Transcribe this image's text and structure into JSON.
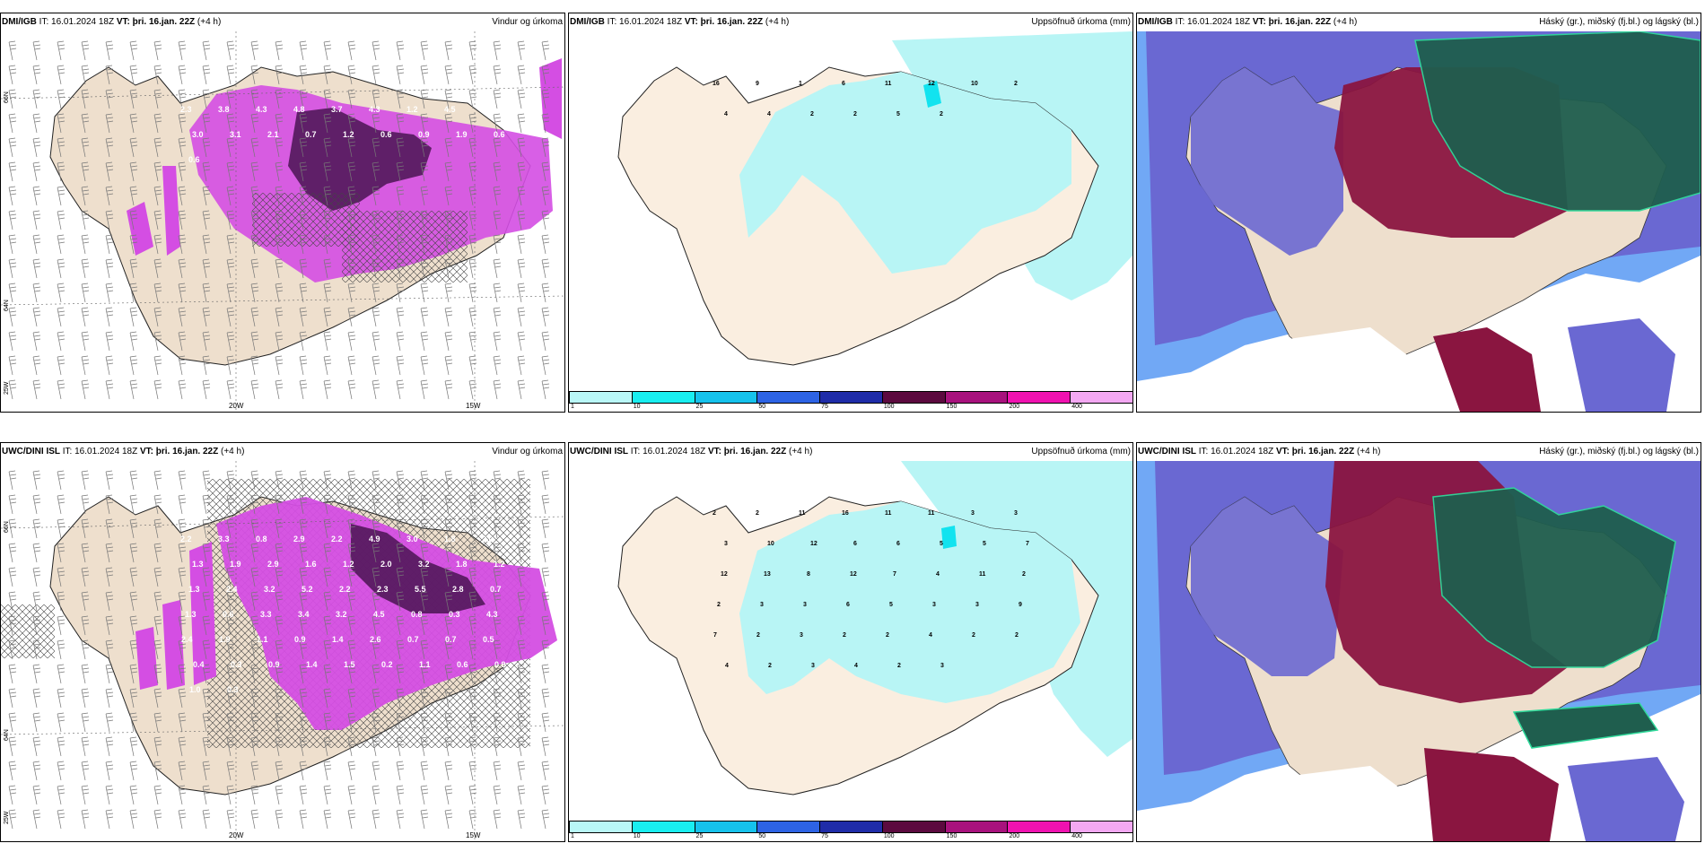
{
  "panels": [
    {
      "model": "DMI/IGB",
      "it_label": "IT:",
      "it": "16.01.2024 18Z",
      "vt_label": "VT:",
      "vt": "þri. 16.jan. 22Z",
      "lead": "(+4 h)",
      "title": "Vindur og úrkoma"
    },
    {
      "model": "DMI/IGB",
      "it_label": "IT:",
      "it": "16.01.2024 18Z",
      "vt_label": "VT:",
      "vt": "þri. 16.jan. 22Z",
      "lead": "(+4 h)",
      "title": "Uppsöfnuð úrkoma (mm)"
    },
    {
      "model": "DMI/IGB",
      "it_label": "IT:",
      "it": "16.01.2024 18Z",
      "vt_label": "VT:",
      "vt": "þri. 16.jan. 22Z",
      "lead": "(+4 h)",
      "title": "Háský (gr.), miðský (fj.bl.) og lágský (bl.)"
    },
    {
      "model": "UWC/DINI ISL",
      "it_label": "IT:",
      "it": "16.01.2024 18Z",
      "vt_label": "VT:",
      "vt": "þri. 16.jan. 22Z",
      "lead": "(+4 h)",
      "title": "Vindur og úrkoma"
    },
    {
      "model": "UWC/DINI ISL",
      "it_label": "IT:",
      "it": "16.01.2024 18Z",
      "vt_label": "VT:",
      "vt": "þri. 16.jan. 22Z",
      "lead": "(+4 h)",
      "title": "Uppsöfnuð úrkoma (mm)"
    },
    {
      "model": "UWC/DINI ISL",
      "it_label": "IT:",
      "it": "16.01.2024 18Z",
      "vt_label": "VT:",
      "vt": "þri. 16.jan. 22Z",
      "lead": "(+4 h)",
      "title": "Háský (gr.), miðský (fj.bl.) og lágský (bl.)"
    }
  ],
  "axes": {
    "lon_20": "20W",
    "lon_15": "15W",
    "lat_66": "66N",
    "lat_64": "64N",
    "lon_25": "25W"
  },
  "colorbar": {
    "ticks": [
      "1",
      "10",
      "25",
      "50",
      "75",
      "100",
      "150",
      "200",
      "400"
    ],
    "colors": [
      "#b9f7f7",
      "#19eef0",
      "#16c2ec",
      "#2d63e4",
      "#1f2ca8",
      "#5c0a3f",
      "#a8127d",
      "#f012b0",
      "#f3a8f2"
    ]
  },
  "colors": {
    "land": "#eedfcd",
    "precip_light": "#b8f5f5",
    "precip_mid": "#12e3ef",
    "wind_precip": "#d44ee3",
    "wind_precip_dark": "#4a1452",
    "cloud_high": "#8a1540",
    "cloud_mid": "#6a68d2",
    "cloud_low": "#1f5e4e",
    "cloud_light": "#71a8f5"
  },
  "precip_values": {
    "top_left": [
      "2.3",
      "3.8",
      "4.3",
      "4.8",
      "3.7",
      "4.3",
      "1.2",
      "4.5",
      "3.9",
      "3.0",
      "3.1",
      "2.1",
      "0.7",
      "1.2",
      "0.6",
      "0.9",
      "1.9",
      "0.6",
      "0.6"
    ],
    "top_mid": [
      "16",
      "9",
      "1",
      "6",
      "11",
      "12",
      "10",
      "2",
      "4",
      "4",
      "2",
      "2",
      "5",
      "2"
    ],
    "bottom_left": [
      "2.2",
      "3.3",
      "0.8",
      "2.9",
      "2.2",
      "4.9",
      "3.0",
      "1.8",
      "2.0",
      "1.3",
      "1.9",
      "2.9",
      "1.6",
      "1.2",
      "2.0",
      "3.2",
      "1.8",
      "1.2",
      "1.3",
      "2.4",
      "3.2",
      "5.2",
      "2.2",
      "2.3",
      "5.5",
      "2.8",
      "0.7",
      "1.3",
      "0.6",
      "3.3",
      "3.4",
      "3.2",
      "4.5",
      "0.8",
      "0.3",
      "4.3",
      "2.4",
      "1.9",
      "1.1",
      "0.9",
      "1.4",
      "2.6",
      "0.7",
      "0.7",
      "0.5",
      "0.4",
      "0.3",
      "0.9",
      "1.4",
      "1.5",
      "0.2",
      "1.1",
      "0.6",
      "0.9",
      "1.0",
      "0.3"
    ],
    "bottom_mid": [
      "2",
      "2",
      "11",
      "16",
      "11",
      "11",
      "3",
      "3",
      "3",
      "10",
      "12",
      "6",
      "6",
      "5",
      "5",
      "7",
      "12",
      "13",
      "8",
      "12",
      "7",
      "4",
      "11",
      "2",
      "2",
      "3",
      "3",
      "6",
      "5",
      "3",
      "3",
      "9",
      "7",
      "2",
      "3",
      "2",
      "2",
      "4",
      "2",
      "2",
      "4",
      "2",
      "3",
      "4",
      "2",
      "3"
    ]
  }
}
